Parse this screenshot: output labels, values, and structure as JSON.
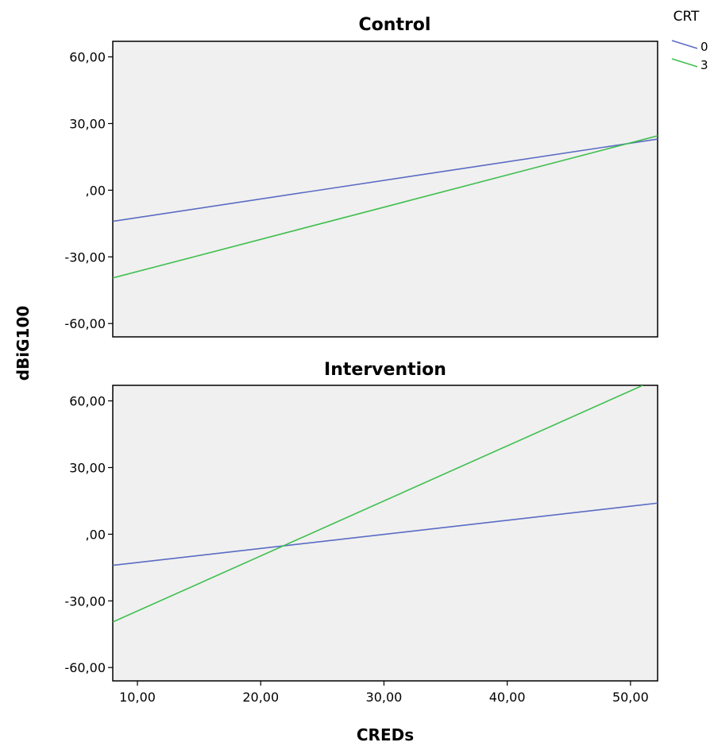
{
  "chart_data": {
    "type": "line",
    "ylabel": "dBiG100",
    "xlabel": "CREDs",
    "xlim": [
      8,
      52.2
    ],
    "x_ticks": [
      10,
      20,
      30,
      40,
      50
    ],
    "x_tick_labels": [
      "10,00",
      "20,00",
      "30,00",
      "40,00",
      "50,00"
    ],
    "legend": {
      "title": "CRT",
      "placement": "top-right",
      "entries": [
        {
          "label": "0",
          "color": "#5a6bc4"
        },
        {
          "label": "3",
          "color": "#3fbf4f"
        }
      ]
    },
    "panels": [
      {
        "title": "Control",
        "ylim": [
          -66,
          67
        ],
        "y_ticks": [
          -60,
          -30,
          0,
          30,
          60
        ],
        "y_tick_labels": [
          "-60,00",
          "-30,00",
          ",00",
          "30,00",
          "60,00"
        ],
        "series": [
          {
            "name": "0",
            "color": "#5a6bc4",
            "x": [
              8,
              52.2
            ],
            "y": [
              -14,
              23
            ]
          },
          {
            "name": "3",
            "color": "#3fbf4f",
            "x": [
              8,
              52.2
            ],
            "y": [
              -39.5,
              24.5
            ]
          }
        ]
      },
      {
        "title": "Intervention",
        "ylim": [
          -66,
          67
        ],
        "y_ticks": [
          -60,
          -30,
          0,
          30,
          60
        ],
        "y_tick_labels": [
          "-60,00",
          "-30,00",
          ",00",
          "30,00",
          "60,00"
        ],
        "series": [
          {
            "name": "0",
            "color": "#5a6bc4",
            "x": [
              8,
              52.2
            ],
            "y": [
              -14,
              14
            ]
          },
          {
            "name": "3",
            "color": "#3fbf4f",
            "x": [
              8,
              51
            ],
            "y": [
              -39.5,
              67
            ]
          }
        ]
      }
    ],
    "plot_background": "#f0f0f0",
    "grid": false
  }
}
